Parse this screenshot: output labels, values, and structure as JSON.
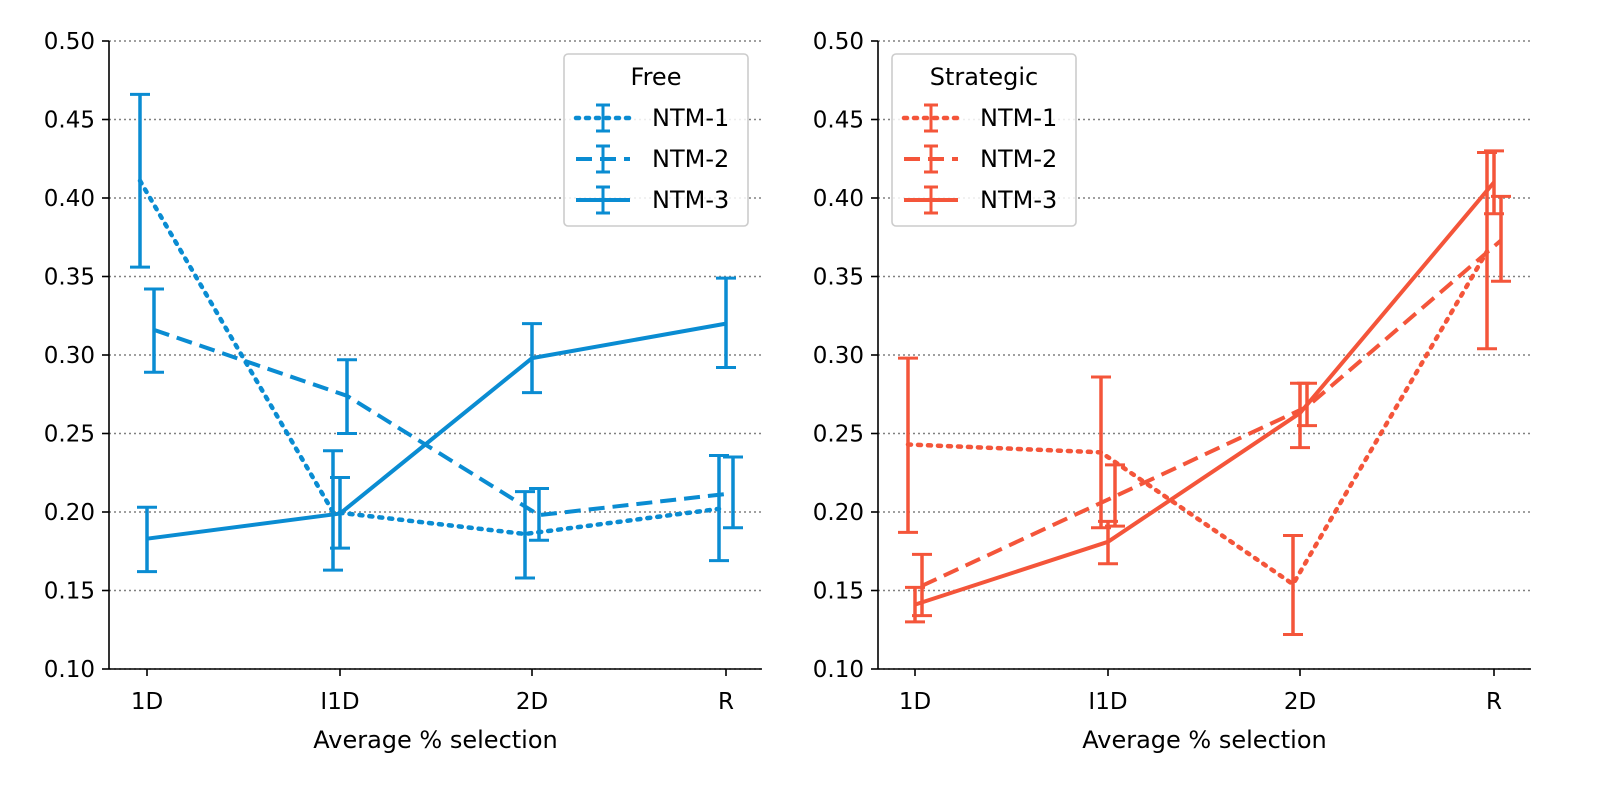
{
  "chart_data": [
    {
      "type": "line",
      "legend_title": "Free",
      "legend_position": "top-right",
      "color": "#0a8cd2",
      "xlabel": "Average % selection",
      "ylabel": "",
      "categories": [
        "1D",
        "I1D",
        "2D",
        "R"
      ],
      "ylim": [
        0.1,
        0.5
      ],
      "yticks": [
        "0.10",
        "0.15",
        "0.20",
        "0.25",
        "0.30",
        "0.35",
        "0.40",
        "0.45",
        "0.50"
      ],
      "grid": "horizontal dotted",
      "series": [
        {
          "name": "NTM-1",
          "style": "dotted",
          "values": [
            0.411,
            0.2,
            0.186,
            0.202
          ],
          "err_low": [
            0.356,
            0.163,
            0.158,
            0.169
          ],
          "err_high": [
            0.466,
            0.239,
            0.213,
            0.236
          ]
        },
        {
          "name": "NTM-2",
          "style": "dashed",
          "values": [
            0.316,
            0.274,
            0.198,
            0.212
          ],
          "err_low": [
            0.289,
            0.25,
            0.182,
            0.19
          ],
          "err_high": [
            0.342,
            0.297,
            0.215,
            0.235
          ]
        },
        {
          "name": "NTM-3",
          "style": "solid",
          "values": [
            0.183,
            0.199,
            0.298,
            0.32
          ],
          "err_low": [
            0.162,
            0.177,
            0.276,
            0.292
          ],
          "err_high": [
            0.203,
            0.222,
            0.32,
            0.349
          ]
        }
      ]
    },
    {
      "type": "line",
      "legend_title": "Strategic",
      "legend_position": "top-left",
      "color": "#f4553a",
      "xlabel": "Average % selection",
      "ylabel": "",
      "categories": [
        "1D",
        "I1D",
        "2D",
        "R"
      ],
      "ylim": [
        0.1,
        0.5
      ],
      "yticks": [
        "0.10",
        "0.15",
        "0.20",
        "0.25",
        "0.30",
        "0.35",
        "0.40",
        "0.45",
        "0.50"
      ],
      "grid": "horizontal dotted",
      "series": [
        {
          "name": "NTM-1",
          "style": "dotted",
          "values": [
            0.243,
            0.238,
            0.154,
            0.366
          ],
          "err_low": [
            0.187,
            0.19,
            0.122,
            0.304
          ],
          "err_high": [
            0.298,
            0.286,
            0.185,
            0.429
          ]
        },
        {
          "name": "NTM-2",
          "style": "dashed",
          "values": [
            0.153,
            0.21,
            0.267,
            0.373
          ],
          "err_low": [
            0.134,
            0.191,
            0.255,
            0.347
          ],
          "err_high": [
            0.173,
            0.23,
            0.282,
            0.401
          ]
        },
        {
          "name": "NTM-3",
          "style": "solid",
          "values": [
            0.141,
            0.181,
            0.263,
            0.41
          ],
          "err_low": [
            0.13,
            0.167,
            0.241,
            0.39
          ],
          "err_high": [
            0.152,
            0.194,
            0.282,
            0.43
          ]
        }
      ]
    }
  ]
}
